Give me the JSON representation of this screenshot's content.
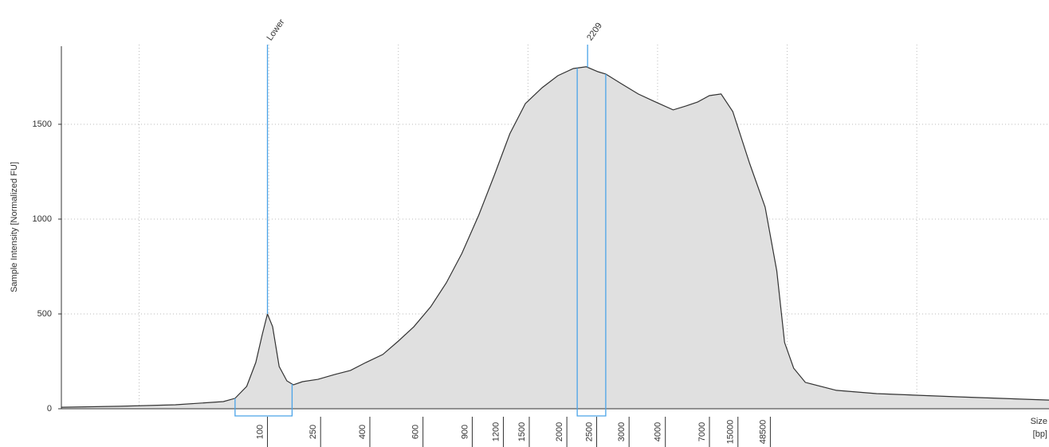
{
  "chart_data": {
    "type": "area",
    "ylabel": "Sample Intensity [Normalized FU]",
    "xlabel_lines": [
      "Size",
      "[bp]"
    ],
    "xlim": [
      0.4,
      8.02
    ],
    "ylim": [
      0,
      1920
    ],
    "yticks": [
      0,
      500,
      1000,
      1500
    ],
    "xgrid": [
      1,
      2,
      3,
      4,
      5,
      6,
      7
    ],
    "grid": true,
    "xticks": [
      {
        "value": 1.99,
        "label": "100"
      },
      {
        "value": 2.4,
        "label": "250"
      },
      {
        "value": 2.78,
        "label": "400"
      },
      {
        "value": 3.19,
        "label": "600"
      },
      {
        "value": 3.57,
        "label": "900"
      },
      {
        "value": 3.81,
        "label": "1200"
      },
      {
        "value": 4.01,
        "label": "1500"
      },
      {
        "value": 4.3,
        "label": "2000"
      },
      {
        "value": 4.53,
        "label": "2500"
      },
      {
        "value": 4.78,
        "label": "3000"
      },
      {
        "value": 5.06,
        "label": "4000"
      },
      {
        "value": 5.4,
        "label": "7000"
      },
      {
        "value": 5.62,
        "label": "15000"
      },
      {
        "value": 5.87,
        "label": "48500"
      }
    ],
    "color": "#e0e0e0",
    "line_color": "#333333",
    "marker_color": "#4aa3e8",
    "x": [
      0.4,
      0.85,
      1.28,
      1.65,
      1.74,
      1.83,
      1.9,
      1.95,
      1.99,
      2.03,
      2.08,
      2.14,
      2.19,
      2.26,
      2.38,
      2.51,
      2.63,
      2.75,
      2.88,
      3.0,
      3.12,
      3.25,
      3.37,
      3.49,
      3.62,
      3.74,
      3.86,
      3.98,
      4.11,
      4.23,
      4.35,
      4.45,
      4.54,
      4.6,
      4.72,
      4.85,
      4.97,
      5.12,
      5.22,
      5.31,
      5.4,
      5.49,
      5.58,
      5.71,
      5.83,
      5.92,
      5.98,
      6.05,
      6.14,
      6.38,
      6.69,
      7.31,
      8.02
    ],
    "values": [
      8,
      13,
      21,
      38,
      55,
      118,
      244,
      391,
      500,
      433,
      223,
      147,
      126,
      143,
      155,
      181,
      202,
      244,
      286,
      357,
      433,
      538,
      664,
      819,
      1021,
      1231,
      1450,
      1609,
      1693,
      1756,
      1794,
      1803,
      1777,
      1765,
      1714,
      1660,
      1622,
      1576,
      1597,
      1618,
      1651,
      1660,
      1567,
      1294,
      1063,
      727,
      349,
      214,
      139,
      97,
      80,
      63,
      46
    ],
    "peaks": [
      {
        "label": "Lower",
        "x": 1.99
      },
      {
        "label": "2209",
        "x": 4.46
      }
    ],
    "regions": [
      [
        1.74,
        2.18
      ],
      [
        4.38,
        4.6
      ]
    ]
  }
}
